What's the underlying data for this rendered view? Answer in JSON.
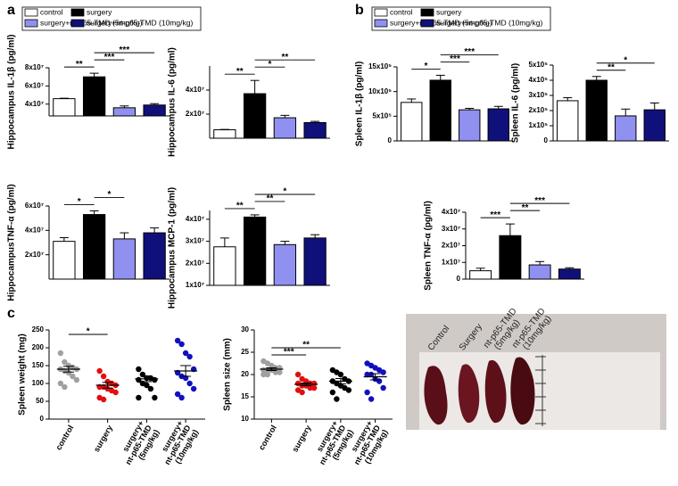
{
  "panel_labels": [
    "a",
    "b",
    "c"
  ],
  "legends": [
    {
      "items": [
        {
          "name": "control",
          "color": "#ffffff"
        },
        {
          "name": "surgery",
          "color": "#000000"
        },
        {
          "name": "surgery+nt-p65-TMD (5mg/kg)",
          "color": "#9090f0"
        },
        {
          "name": "surgery+nt-p65-TMD (10mg/kg)",
          "color": "#10107a"
        }
      ]
    },
    {
      "items": [
        {
          "name": "control",
          "color": "#ffffff"
        },
        {
          "name": "surgery",
          "color": "#000000"
        },
        {
          "name": "surgery+nt-p65-TMD (5mg/kg)",
          "color": "#9090f0"
        },
        {
          "name": "surgery+nt-p65-TMD (10mg/kg)",
          "color": "#10107a"
        }
      ]
    }
  ],
  "chart_data": [
    {
      "type": "bar",
      "ylabel": "Hippocampus IL-1β (pg/ml)",
      "categories": [
        null,
        null,
        null,
        null
      ],
      "values": [
        46000000,
        70000000,
        36000000,
        39000000
      ],
      "errors": [
        500000,
        4000000,
        2000000,
        1500000
      ],
      "colors": [
        "#ffffff",
        "#000000",
        "#9090f0",
        "#10107a"
      ],
      "ylim": [
        27000000,
        80000000
      ],
      "yticks": [
        {
          "value": 40000000,
          "label": "4x10⁷"
        },
        {
          "value": 60000000,
          "label": "6x10⁷"
        },
        {
          "value": 80000000,
          "label": "8x10⁷"
        }
      ],
      "annotations": [
        "**",
        "***",
        "***"
      ]
    },
    {
      "type": "bar",
      "ylabel": "Hippocampus IL-6 (pg/ml)",
      "categories": [
        null,
        null,
        null,
        null
      ],
      "values": [
        7000000,
        37000000,
        17000000,
        13000000
      ],
      "errors": [
        300000,
        11000000,
        2000000,
        1000000
      ],
      "colors": [
        "#ffffff",
        "#000000",
        "#9090f0",
        "#10107a"
      ],
      "ylim": [
        0,
        60000000
      ],
      "yticks": [
        {
          "value": 20000000,
          "label": "2x10⁷"
        },
        {
          "value": 40000000,
          "label": "4x10⁷"
        }
      ],
      "annotations": [
        "**",
        "*",
        "**"
      ]
    },
    {
      "type": "bar",
      "ylabel": "HippocampusTNF-α (pg/ml)",
      "categories": [
        null,
        null,
        null,
        null
      ],
      "values": [
        31000000,
        53000000,
        33000000,
        38000000
      ],
      "errors": [
        3000000,
        3000000,
        5000000,
        4000000
      ],
      "colors": [
        "#ffffff",
        "#000000",
        "#9090f0",
        "#10107a"
      ],
      "ylim": [
        0,
        60000000
      ],
      "yticks": [
        {
          "value": 20000000,
          "label": "2x10⁷"
        },
        {
          "value": 40000000,
          "label": "4x10⁷"
        },
        {
          "value": 60000000,
          "label": "6x10⁷"
        }
      ],
      "annotations": [
        "*",
        "*"
      ]
    },
    {
      "type": "bar",
      "ylabel": "Hippocampus MCP-1 (pg/ml)",
      "categories": [
        null,
        null,
        null,
        null
      ],
      "values": [
        27500000,
        41000000,
        28500000,
        31500000
      ],
      "errors": [
        4000000,
        1000000,
        1500000,
        1500000
      ],
      "colors": [
        "#ffffff",
        "#000000",
        "#9090f0",
        "#10107a"
      ],
      "ylim": [
        10000000,
        44000000
      ],
      "yticks": [
        {
          "value": 10000000,
          "label": "1x10⁷"
        },
        {
          "value": 20000000,
          "label": "2x10⁷"
        },
        {
          "value": 30000000,
          "label": "3x10⁷"
        },
        {
          "value": 40000000,
          "label": "4x10⁷"
        }
      ],
      "annotations": [
        "**",
        "**",
        "*"
      ]
    },
    {
      "type": "bar",
      "ylabel": "Spleen IL-1β (pg/ml)",
      "categories": [
        null,
        null,
        null,
        null
      ],
      "values": [
        780000,
        1230000,
        630000,
        650000
      ],
      "errors": [
        70000,
        100000,
        30000,
        50000
      ],
      "colors": [
        "#ffffff",
        "#000000",
        "#9090f0",
        "#10107a"
      ],
      "ylim": [
        0,
        1500000
      ],
      "yticks": [
        0,
        {
          "value": 500000,
          "label": "5x10⁵"
        },
        {
          "value": 1000000,
          "label": "10x10⁵"
        },
        {
          "value": 1500000,
          "label": "15x10⁵"
        }
      ],
      "annotations": [
        "*",
        "***",
        "***"
      ]
    },
    {
      "type": "bar",
      "ylabel": "Spleen IL-6 (pg/ml)",
      "categories": [
        null,
        null,
        null,
        null
      ],
      "values": [
        265000,
        400000,
        165000,
        205000
      ],
      "errors": [
        20000,
        25000,
        45000,
        45000
      ],
      "colors": [
        "#ffffff",
        "#000000",
        "#9090f0",
        "#10107a"
      ],
      "ylim": [
        0,
        500000
      ],
      "yticks": [
        0,
        {
          "value": 100000,
          "label": "1x10⁵"
        },
        {
          "value": 200000,
          "label": "2x10⁵"
        },
        {
          "value": 300000,
          "label": "3x10⁵"
        },
        {
          "value": 400000,
          "label": "4x10⁵"
        },
        {
          "value": 500000,
          "label": "5x10⁵"
        }
      ],
      "annotations": [
        "**",
        "*"
      ]
    },
    {
      "type": "bar",
      "ylabel": "Spleen TNF-α (pg/ml)",
      "categories": [
        null,
        null,
        null,
        null
      ],
      "values": [
        5000000,
        26000000,
        8500000,
        6000000
      ],
      "errors": [
        1500000,
        7000000,
        2000000,
        800000
      ],
      "colors": [
        "#ffffff",
        "#000000",
        "#9090f0",
        "#10107a"
      ],
      "ylim": [
        0,
        40000000
      ],
      "yticks": [
        0,
        {
          "value": 10000000,
          "label": "1x10⁷"
        },
        {
          "value": 20000000,
          "label": "2x10⁷"
        },
        {
          "value": 30000000,
          "label": "3x10⁷"
        },
        {
          "value": 40000000,
          "label": "4x10⁷"
        }
      ],
      "annotations": [
        "***",
        "**",
        "***"
      ]
    },
    {
      "type": "dot",
      "ylabel": "Spleen weight (mg)",
      "categories": [
        "control",
        "surgery",
        "surgery+ nt-p65-TMD (5mg/kg)",
        "surgery+ nt-p65-TMD (10mg/kg)"
      ],
      "groups": [
        {
          "color": "#a0a0a0",
          "values": [
            185,
            160,
            150,
            145,
            140,
            140,
            135,
            130,
            120,
            110,
            100,
            90
          ],
          "mean": 140,
          "sem": 8
        },
        {
          "color": "#e01010",
          "values": [
            135,
            120,
            105,
            100,
            95,
            90,
            90,
            85,
            80,
            75,
            60,
            55
          ],
          "mean": 95,
          "sem": 8
        },
        {
          "color": "#000000",
          "values": [
            140,
            125,
            115,
            115,
            110,
            110,
            100,
            95,
            85,
            60,
            60
          ],
          "mean": 113,
          "sem": 8
        },
        {
          "color": "#1010c0",
          "values": [
            220,
            210,
            185,
            175,
            140,
            130,
            120,
            115,
            100,
            85,
            70,
            60
          ],
          "mean": 135,
          "sem": 15
        }
      ],
      "ylim": [
        0,
        250
      ],
      "yticks": [
        0,
        50,
        100,
        150,
        200,
        250
      ],
      "annotations": [
        "*"
      ]
    },
    {
      "type": "dot",
      "ylabel": "Spleen size (mm)",
      "categories": [
        "control",
        "surgery",
        "surgery+ nt-p65-TMD (5mg/kg)",
        "surgery+ nt-p65-TMD (10mg/kg)"
      ],
      "groups": [
        {
          "color": "#a0a0a0",
          "values": [
            23,
            22.5,
            22,
            21.5,
            21.5,
            21,
            21,
            21,
            20.5,
            20.5,
            20,
            20
          ],
          "mean": 21.2,
          "sem": 0.3
        },
        {
          "color": "#e01010",
          "values": [
            20,
            19,
            18.5,
            18,
            18,
            18,
            17.5,
            17.5,
            17,
            17,
            16.5,
            16
          ],
          "mean": 17.8,
          "sem": 0.3
        },
        {
          "color": "#000000",
          "values": [
            21,
            20.5,
            20,
            19,
            18.5,
            18.5,
            18,
            17.5,
            17,
            16.5,
            16,
            14.5
          ],
          "mean": 18.5,
          "sem": 0.6
        },
        {
          "color": "#1010c0",
          "values": [
            22.5,
            22,
            21.5,
            21,
            20.5,
            20,
            20,
            19,
            18.5,
            17,
            16,
            14.5
          ],
          "mean": 19.5,
          "sem": 0.7
        }
      ],
      "ylim": [
        10,
        30
      ],
      "yticks": [
        10,
        15,
        20,
        25,
        30
      ],
      "annotations": [
        "***",
        "**"
      ]
    }
  ],
  "photo": {
    "labels": [
      "Control",
      "Surgery",
      "nt-p65-TMD (5mg/kg)",
      "nt-p65-TMD (10mg/kg)"
    ]
  }
}
